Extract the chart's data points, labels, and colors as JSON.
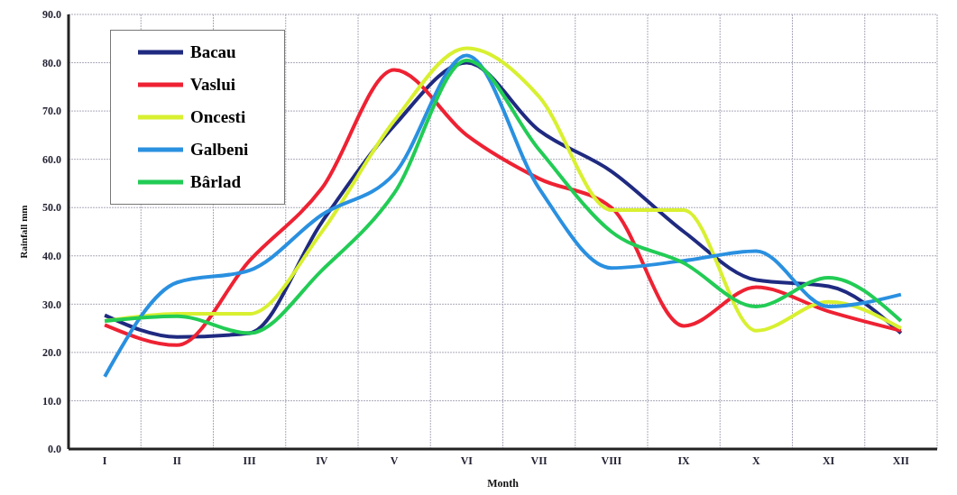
{
  "chart_data": {
    "type": "line",
    "xlabel": "Month",
    "ylabel": "Rainfall mm",
    "categories": [
      "I",
      "II",
      "III",
      "IV",
      "V",
      "VI",
      "VII",
      "VIII",
      "IX",
      "X",
      "XI",
      "XII"
    ],
    "series": [
      {
        "name": "Bacau",
        "color": "#1f2a80",
        "values": [
          27.7,
          23.2,
          24,
          47,
          67,
          80,
          66,
          57.5,
          45,
          35,
          33.7,
          24
        ]
      },
      {
        "name": "Vaslui",
        "color": "#ee2233",
        "values": [
          25.7,
          21.5,
          39,
          54,
          78.5,
          65,
          56,
          50,
          25.5,
          33.5,
          28.5,
          24.5
        ]
      },
      {
        "name": "Oncesti",
        "color": "#d8f030",
        "values": [
          26.5,
          28,
          28,
          45,
          68,
          83,
          73,
          49.5,
          49.5,
          24.5,
          30.5,
          25
        ]
      },
      {
        "name": "Galbeni",
        "color": "#2a90e0",
        "values": [
          15,
          34.5,
          37,
          48.5,
          57,
          81.5,
          54,
          37.5,
          39,
          41,
          29.5,
          32
        ]
      },
      {
        "name": "Bârlad",
        "color": "#22cc55",
        "values": [
          26.5,
          27.5,
          24,
          37,
          53,
          80.5,
          62,
          45,
          38.5,
          29.5,
          35.5,
          26.5
        ]
      }
    ],
    "ylim": [
      0,
      90
    ],
    "yticks": [
      {
        "value": 0,
        "label": "0.0"
      },
      {
        "value": 10,
        "label": "10.0"
      },
      {
        "value": 20,
        "label": "20.0"
      },
      {
        "value": 30,
        "label": "30.0"
      },
      {
        "value": 40,
        "label": "40.0"
      },
      {
        "value": 50,
        "label": "50.0"
      },
      {
        "value": 60,
        "label": "60.0"
      },
      {
        "value": 70,
        "label": "70.0"
      },
      {
        "value": 80,
        "label": "80.0"
      },
      {
        "value": 90,
        "label": "90.0"
      }
    ],
    "grid": true,
    "legend": "top left",
    "marker": "none",
    "line_style": "solid"
  }
}
